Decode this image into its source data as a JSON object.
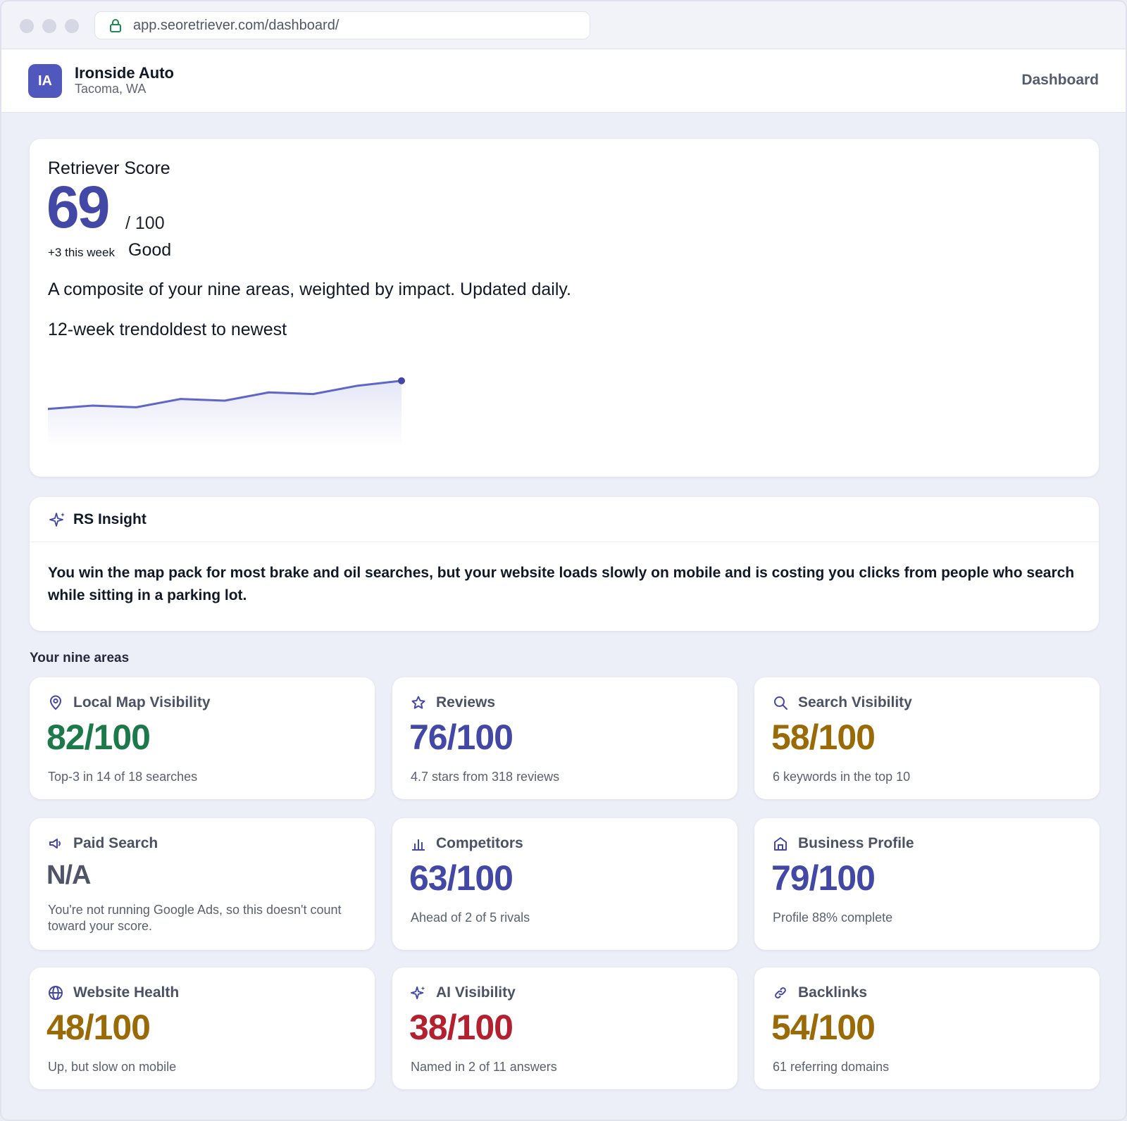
{
  "browser": {
    "url": "app.seoretriever.com/dashboard/"
  },
  "header": {
    "avatar_initials": "IA",
    "business_name": "Ironside Auto",
    "location": "Tacoma, WA",
    "nav_link": "Dashboard"
  },
  "score": {
    "label": "Retriever Score",
    "value": "69",
    "max_label": "/ 100",
    "delta": "+3 this week",
    "rating": "Good",
    "description": "A composite of your nine areas, weighted by impact. Updated daily.",
    "trend_label": "12-week trendoldest to newest",
    "accent_color": "#4348a6",
    "line_color": "#5e66c8"
  },
  "chart_data": {
    "type": "area",
    "x": [
      1,
      2,
      3,
      4,
      5,
      6,
      7,
      8,
      9
    ],
    "values": [
      61,
      62,
      61.5,
      64,
      63.5,
      66,
      65.5,
      68,
      69.5
    ],
    "ylim": [
      55,
      72
    ],
    "grid": false
  },
  "insight": {
    "title": "RS Insight",
    "icon": "sparkle-icon",
    "text": "You win the map pack for most brake and oil searches, but your website loads slowly on mobile and is costing you clicks from people who search while sitting in a parking lot."
  },
  "areas_label": "Your nine areas",
  "areas": [
    {
      "icon": "map-pin-icon",
      "title": "Local Map Visibility",
      "score": "82/100",
      "note": "Top-3 in 14 of 18 searches",
      "color": "#1c7a4a"
    },
    {
      "icon": "star-icon",
      "title": "Reviews",
      "score": "76/100",
      "note": "4.7 stars from 318 reviews",
      "color": "#4348a6"
    },
    {
      "icon": "search-icon",
      "title": "Search Visibility",
      "score": "58/100",
      "note": "6 keywords in the top 10",
      "color": "#9a6a07"
    },
    {
      "icon": "megaphone-icon",
      "title": "Paid Search",
      "score": "N/A",
      "note": "You're not running Google Ads, so this doesn't count toward your score.",
      "color": "#4f5567"
    },
    {
      "icon": "bar-chart-icon",
      "title": "Competitors",
      "score": "63/100",
      "note": "Ahead of 2 of 5 rivals",
      "color": "#4348a6"
    },
    {
      "icon": "storefront-icon",
      "title": "Business Profile",
      "score": "79/100",
      "note": "Profile 88% complete",
      "color": "#4348a6"
    },
    {
      "icon": "globe-icon",
      "title": "Website Health",
      "score": "48/100",
      "note": "Up, but slow on mobile",
      "color": "#9a6a07"
    },
    {
      "icon": "sparkle-icon",
      "title": "AI Visibility",
      "score": "38/100",
      "note": "Named in 2 of 11 answers",
      "color": "#b3202f"
    },
    {
      "icon": "link-icon",
      "title": "Backlinks",
      "score": "54/100",
      "note": "61 referring domains",
      "color": "#9a6a07"
    }
  ]
}
